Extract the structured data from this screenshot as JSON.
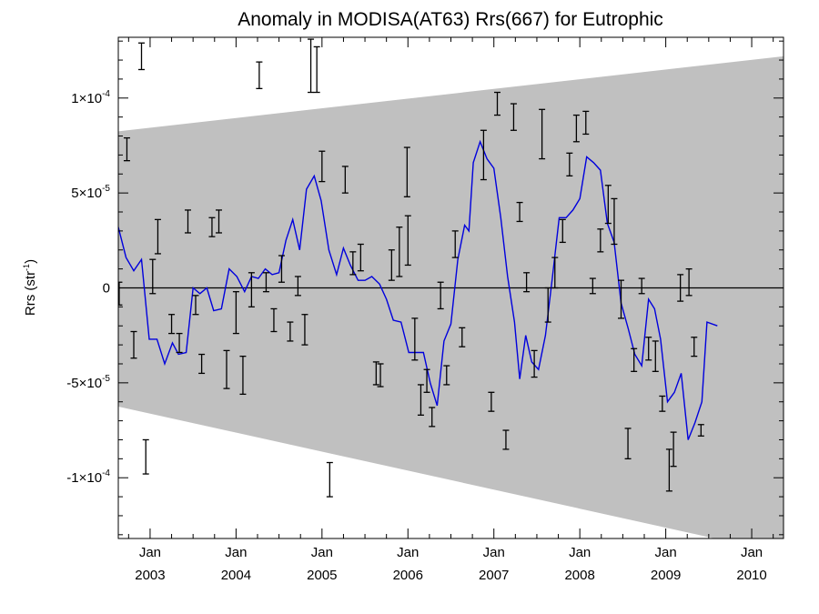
{
  "chart_data": {
    "type": "line",
    "title": "Anomaly in MODISA(AT63) Rrs(667) for Eutrophic",
    "ylabel": "Rrs (str",
    "ylabel_sup": "-1",
    "ylabel_end": ")",
    "xlim": [
      2002.63,
      2010.37
    ],
    "ylim": [
      -0.000132,
      0.000132
    ],
    "x_ticks": [
      {
        "x": 2003.0,
        "label": "Jan",
        "sub": "2003"
      },
      {
        "x": 2004.0,
        "label": "Jan",
        "sub": "2004"
      },
      {
        "x": 2005.0,
        "label": "Jan",
        "sub": "2005"
      },
      {
        "x": 2006.0,
        "label": "Jan",
        "sub": "2006"
      },
      {
        "x": 2007.0,
        "label": "Jan",
        "sub": "2007"
      },
      {
        "x": 2008.0,
        "label": "Jan",
        "sub": "2008"
      },
      {
        "x": 2009.0,
        "label": "Jan",
        "sub": "2009"
      },
      {
        "x": 2010.0,
        "label": "Jan",
        "sub": "2010"
      }
    ],
    "y_ticks": [
      {
        "y": 0.0001,
        "mant": "1×10",
        "exp": "-4"
      },
      {
        "y": 5e-05,
        "mant": "5×10",
        "exp": "-5"
      },
      {
        "y": 0,
        "mant": "0",
        "exp": ""
      },
      {
        "y": -5e-05,
        "mant": "-5×10",
        "exp": "-5"
      },
      {
        "y": -0.0001,
        "mant": "-1×10",
        "exp": "-4"
      }
    ],
    "envelope": {
      "upper": [
        [
          2002.63,
          8.25e-05
        ],
        [
          2010.37,
          0.000122
        ]
      ],
      "lower": [
        [
          2002.63,
          -6.25e-05
        ],
        [
          2010.37,
          -0.00014
        ]
      ]
    },
    "zero_line": 0,
    "colors": {
      "band": "#c0c0c0",
      "line": "#0000dd",
      "errorbar": "#000000",
      "axis": "#000000"
    },
    "series": [
      {
        "style": "line",
        "points": [
          [
            2002.63,
            3.2e-05
          ],
          [
            2002.72,
            1.6e-05
          ],
          [
            2002.81,
            9e-06
          ],
          [
            2002.9,
            1.5e-05
          ],
          [
            2002.99,
            -2.7e-05
          ],
          [
            2003.08,
            -2.7e-05
          ],
          [
            2003.17,
            -4e-05
          ],
          [
            2003.26,
            -2.9e-05
          ],
          [
            2003.33,
            -3.5e-05
          ],
          [
            2003.42,
            -3.4e-05
          ],
          [
            2003.5,
            0.0
          ],
          [
            2003.58,
            -3e-06
          ],
          [
            2003.66,
            0.0
          ],
          [
            2003.74,
            -1.2e-05
          ],
          [
            2003.83,
            -1.1e-05
          ],
          [
            2003.92,
            1e-05
          ],
          [
            2004.01,
            6e-06
          ],
          [
            2004.1,
            -2e-06
          ],
          [
            2004.18,
            6e-06
          ],
          [
            2004.26,
            5e-06
          ],
          [
            2004.34,
            1e-05
          ],
          [
            2004.42,
            7e-06
          ],
          [
            2004.5,
            8e-06
          ],
          [
            2004.58,
            2.5e-05
          ],
          [
            2004.66,
            3.6e-05
          ],
          [
            2004.74,
            2e-05
          ],
          [
            2004.82,
            5.2e-05
          ],
          [
            2004.91,
            5.9e-05
          ],
          [
            2004.99,
            4.6e-05
          ],
          [
            2005.08,
            2e-05
          ],
          [
            2005.17,
            7e-06
          ],
          [
            2005.25,
            2.1e-05
          ],
          [
            2005.33,
            1.2e-05
          ],
          [
            2005.42,
            4e-06
          ],
          [
            2005.5,
            4e-06
          ],
          [
            2005.58,
            6e-06
          ],
          [
            2005.67,
            2e-06
          ],
          [
            2005.75,
            -6e-06
          ],
          [
            2005.83,
            -1.7e-05
          ],
          [
            2005.92,
            -1.8e-05
          ],
          [
            2006.01,
            -3.4e-05
          ],
          [
            2006.1,
            -3.4e-05
          ],
          [
            2006.18,
            -3.4e-05
          ],
          [
            2006.26,
            -5e-05
          ],
          [
            2006.34,
            -6.2e-05
          ],
          [
            2006.42,
            -2.8e-05
          ],
          [
            2006.5,
            -1.9e-05
          ],
          [
            2006.58,
            1.5e-05
          ],
          [
            2006.66,
            3.3e-05
          ],
          [
            2006.71,
            3e-05
          ],
          [
            2006.76,
            6.6e-05
          ],
          [
            2006.84,
            7.7e-05
          ],
          [
            2006.92,
            6.8e-05
          ],
          [
            2007.0,
            6.3e-05
          ],
          [
            2007.08,
            3.7e-05
          ],
          [
            2007.16,
            6e-06
          ],
          [
            2007.24,
            -1.8e-05
          ],
          [
            2007.3,
            -4.8e-05
          ],
          [
            2007.37,
            -2.5e-05
          ],
          [
            2007.44,
            -3.9e-05
          ],
          [
            2007.52,
            -4.3e-05
          ],
          [
            2007.6,
            -2.5e-05
          ],
          [
            2007.68,
            5e-06
          ],
          [
            2007.76,
            3.7e-05
          ],
          [
            2007.84,
            3.7e-05
          ],
          [
            2007.92,
            4.1e-05
          ],
          [
            2008.0,
            4.7e-05
          ],
          [
            2008.08,
            6.9e-05
          ],
          [
            2008.16,
            6.6e-05
          ],
          [
            2008.24,
            6.2e-05
          ],
          [
            2008.32,
            3.4e-05
          ],
          [
            2008.4,
            2.4e-05
          ],
          [
            2008.48,
            -8e-06
          ],
          [
            2008.56,
            -2.1e-05
          ],
          [
            2008.64,
            -3.5e-05
          ],
          [
            2008.72,
            -4.1e-05
          ],
          [
            2008.8,
            -6e-06
          ],
          [
            2008.87,
            -1.1e-05
          ],
          [
            2008.94,
            -2.7e-05
          ],
          [
            2009.02,
            -6e-05
          ],
          [
            2009.1,
            -5.5e-05
          ],
          [
            2009.18,
            -4.5e-05
          ],
          [
            2009.26,
            -8e-05
          ],
          [
            2009.34,
            -7.1e-05
          ],
          [
            2009.42,
            -6e-05
          ],
          [
            2009.48,
            -1.8e-05
          ],
          [
            2009.6,
            -2e-05
          ]
        ]
      },
      {
        "style": "errorbar",
        "points": [
          [
            2002.64,
            -3e-06,
            6e-06
          ],
          [
            2002.73,
            7.3e-05,
            6e-06
          ],
          [
            2002.81,
            -3e-05,
            7e-06
          ],
          [
            2002.9,
            0.000122,
            7e-06
          ],
          [
            2002.95,
            -8.9e-05,
            9e-06
          ],
          [
            2003.03,
            6e-06,
            9e-06
          ],
          [
            2003.09,
            2.7e-05,
            9e-06
          ],
          [
            2003.25,
            -1.9e-05,
            5e-06
          ],
          [
            2003.34,
            -2.9e-05,
            5e-06
          ],
          [
            2003.44,
            3.5e-05,
            6e-06
          ],
          [
            2003.53,
            -9e-06,
            5e-06
          ],
          [
            2003.6,
            -4e-05,
            5e-06
          ],
          [
            2003.72,
            3.2e-05,
            5e-06
          ],
          [
            2003.8,
            3.5e-05,
            6e-06
          ],
          [
            2003.89,
            -4.3e-05,
            1e-05
          ],
          [
            2004.0,
            -1.3e-05,
            1.1e-05
          ],
          [
            2004.08,
            -4.6e-05,
            1e-05
          ],
          [
            2004.18,
            -1e-06,
            9e-06
          ],
          [
            2004.27,
            0.000112,
            7e-06
          ],
          [
            2004.35,
            3e-06,
            5e-06
          ],
          [
            2004.44,
            -1.7e-05,
            6e-06
          ],
          [
            2004.53,
            1e-05,
            7e-06
          ],
          [
            2004.63,
            -2.3e-05,
            5e-06
          ],
          [
            2004.72,
            1e-06,
            5e-06
          ],
          [
            2004.8,
            -2.2e-05,
            8e-06
          ],
          [
            2004.87,
            0.000117,
            1.4e-05
          ],
          [
            2004.94,
            0.000115,
            1.2e-05
          ],
          [
            2005.0,
            6.4e-05,
            8e-06
          ],
          [
            2005.09,
            -0.000101,
            9e-06
          ],
          [
            2005.27,
            5.7e-05,
            7e-06
          ],
          [
            2005.36,
            1.3e-05,
            6e-06
          ],
          [
            2005.45,
            1.6e-05,
            7e-06
          ],
          [
            2005.63,
            -4.5e-05,
            6e-06
          ],
          [
            2005.68,
            -4.6e-05,
            6e-06
          ],
          [
            2005.81,
            1.2e-05,
            8e-06
          ],
          [
            2005.9,
            1.9e-05,
            1.3e-05
          ],
          [
            2005.99,
            6.1e-05,
            1.3e-05
          ],
          [
            2006.0,
            2.5e-05,
            1.3e-05
          ],
          [
            2006.08,
            -2.7e-05,
            1.1e-05
          ],
          [
            2006.15,
            -5.9e-05,
            8e-06
          ],
          [
            2006.22,
            -4.9e-05,
            6e-06
          ],
          [
            2006.28,
            -6.8e-05,
            5e-06
          ],
          [
            2006.38,
            -4e-06,
            7e-06
          ],
          [
            2006.45,
            -4.6e-05,
            5e-06
          ],
          [
            2006.55,
            2.3e-05,
            7e-06
          ],
          [
            2006.63,
            -2.6e-05,
            5e-06
          ],
          [
            2006.88,
            7e-05,
            1.3e-05
          ],
          [
            2006.97,
            -6e-05,
            5e-06
          ],
          [
            2007.04,
            9.7e-05,
            6e-06
          ],
          [
            2007.14,
            -8e-05,
            5e-06
          ],
          [
            2007.23,
            9e-05,
            7e-06
          ],
          [
            2007.3,
            4e-05,
            5e-06
          ],
          [
            2007.38,
            3e-06,
            5e-06
          ],
          [
            2007.47,
            -4e-05,
            7e-06
          ],
          [
            2007.56,
            8.1e-05,
            1.3e-05
          ],
          [
            2007.63,
            -9e-06,
            9e-06
          ],
          [
            2007.71,
            8e-06,
            8e-06
          ],
          [
            2007.8,
            3e-05,
            6e-06
          ],
          [
            2007.88,
            6.5e-05,
            6e-06
          ],
          [
            2007.96,
            8.4e-05,
            7e-06
          ],
          [
            2008.07,
            8.7e-05,
            6e-06
          ],
          [
            2008.15,
            1e-06,
            4e-06
          ],
          [
            2008.24,
            2.5e-05,
            6e-06
          ],
          [
            2008.33,
            4.4e-05,
            1e-05
          ],
          [
            2008.4,
            3.5e-05,
            1.2e-05
          ],
          [
            2008.48,
            -6e-06,
            1e-05
          ],
          [
            2008.56,
            -8.2e-05,
            8e-06
          ],
          [
            2008.63,
            -3.8e-05,
            6e-06
          ],
          [
            2008.72,
            1e-06,
            4e-06
          ],
          [
            2008.8,
            -3.2e-05,
            6e-06
          ],
          [
            2008.88,
            -3.6e-05,
            8e-06
          ],
          [
            2008.96,
            -6.1e-05,
            4e-06
          ],
          [
            2009.04,
            -9.6e-05,
            1.1e-05
          ],
          [
            2009.09,
            -8.5e-05,
            9e-06
          ],
          [
            2009.17,
            0.0,
            7e-06
          ],
          [
            2009.27,
            3e-06,
            7e-06
          ],
          [
            2009.33,
            -3.1e-05,
            5e-06
          ],
          [
            2009.41,
            -7.5e-05,
            3e-06
          ]
        ]
      }
    ]
  }
}
